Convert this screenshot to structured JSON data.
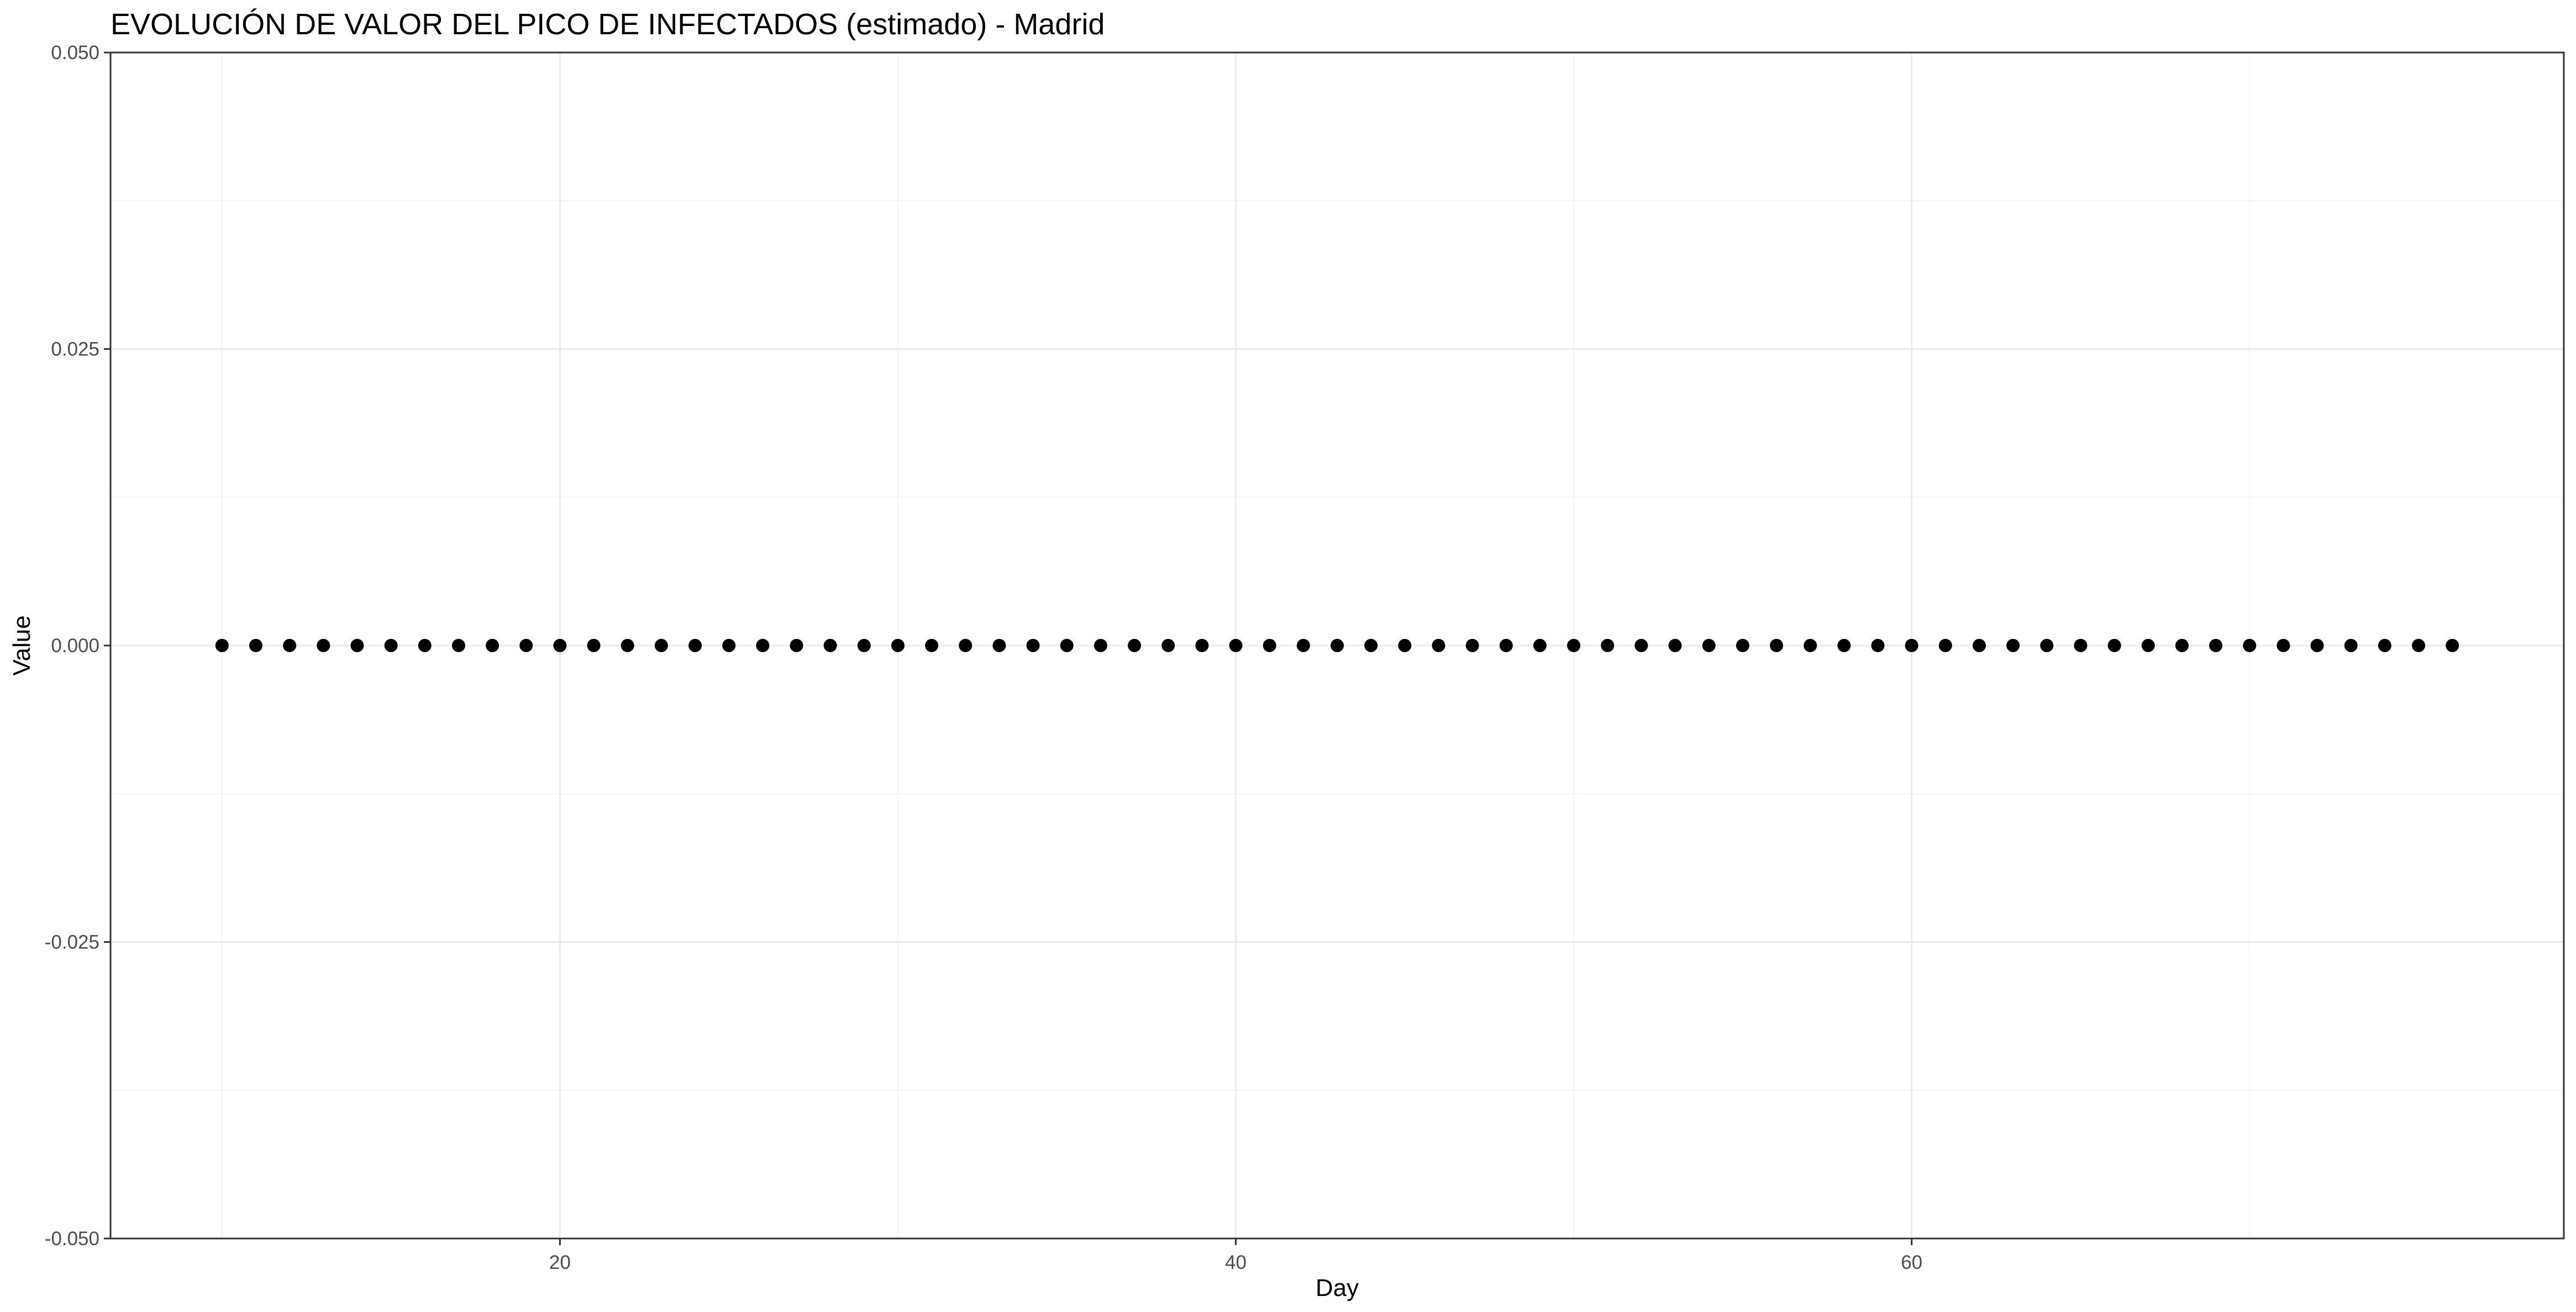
{
  "chart_data": {
    "type": "scatter",
    "title": "EVOLUCIÓN DE VALOR DEL PICO DE INFECTADOS (estimado) - Madrid",
    "xlabel": "Day",
    "ylabel": "Value",
    "xlim": [
      6.7,
      79.3
    ],
    "ylim": [
      -0.05,
      0.05
    ],
    "x_ticks": [
      20,
      40,
      60
    ],
    "x_tick_labels": [
      "20",
      "40",
      "60"
    ],
    "x_minor_ticks": [
      10,
      30,
      50,
      70
    ],
    "y_ticks": [
      -0.05,
      -0.025,
      0,
      0.025,
      0.05
    ],
    "y_tick_labels": [
      "-0.050",
      "-0.025",
      "0.000",
      "0.025",
      "0.050"
    ],
    "y_minor_ticks": [
      -0.0375,
      -0.0125,
      0.0125,
      0.0375
    ],
    "grid": true,
    "point_color": "#000000",
    "series": [
      {
        "x": [
          10,
          11,
          12,
          13,
          14,
          15,
          16,
          17,
          18,
          19,
          20,
          21,
          22,
          23,
          24,
          25,
          26,
          27,
          28,
          29,
          30,
          31,
          32,
          33,
          34,
          35,
          36,
          37,
          38,
          39,
          40,
          41,
          42,
          43,
          44,
          45,
          46,
          47,
          48,
          49,
          50,
          51,
          52,
          53,
          54,
          55,
          56,
          57,
          58,
          59,
          60,
          61,
          62,
          63,
          64,
          65,
          66,
          67,
          68,
          69,
          70,
          71,
          72,
          73,
          74,
          75,
          76
        ],
        "y": [
          0,
          0,
          0,
          0,
          0,
          0,
          0,
          0,
          0,
          0,
          0,
          0,
          0,
          0,
          0,
          0,
          0,
          0,
          0,
          0,
          0,
          0,
          0,
          0,
          0,
          0,
          0,
          0,
          0,
          0,
          0,
          0,
          0,
          0,
          0,
          0,
          0,
          0,
          0,
          0,
          0,
          0,
          0,
          0,
          0,
          0,
          0,
          0,
          0,
          0,
          0,
          0,
          0,
          0,
          0,
          0,
          0,
          0,
          0,
          0,
          0,
          0,
          0,
          0,
          0,
          0,
          0
        ]
      }
    ]
  }
}
